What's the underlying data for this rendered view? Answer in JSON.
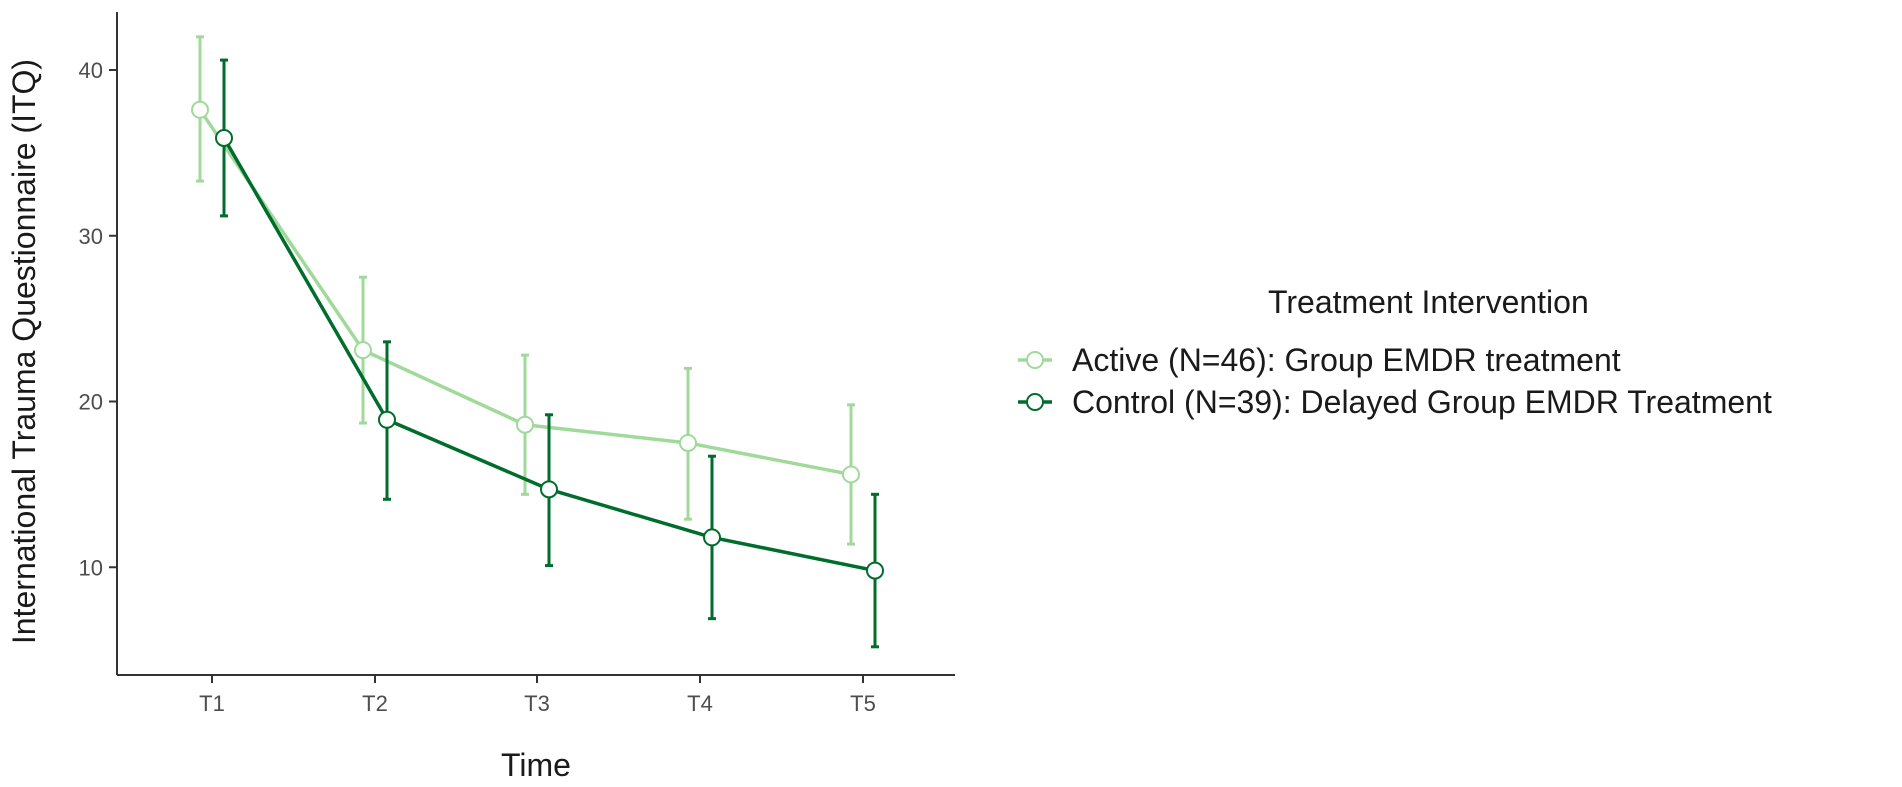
{
  "chart_data": {
    "type": "line",
    "categories": [
      "T1",
      "T2",
      "T3",
      "T4",
      "T5"
    ],
    "xlabel": "Time",
    "ylabel": "International Trauma Questionnaire (ITQ)",
    "ylim": [
      3.5,
      43.5
    ],
    "yticks": [
      10,
      20,
      30,
      40
    ],
    "grid": false,
    "legend": {
      "title": "Treatment Intervention",
      "position": "right"
    },
    "series": [
      {
        "name": "Active (N=46): Group EMDR treatment",
        "color": "#a1d99b",
        "values": [
          37.6,
          23.1,
          18.6,
          17.5,
          15.6
        ],
        "error_low": [
          33.3,
          18.7,
          14.4,
          12.9,
          11.4
        ],
        "error_high": [
          42.0,
          27.5,
          22.8,
          22.0,
          19.8
        ]
      },
      {
        "name": "Control (N=39): Delayed Group EMDR Treatment",
        "color": "#006d2c",
        "values": [
          35.9,
          18.9,
          14.7,
          11.8,
          9.8
        ],
        "error_low": [
          31.2,
          14.1,
          10.1,
          6.9,
          5.2
        ],
        "error_high": [
          40.6,
          23.6,
          19.2,
          16.7,
          14.4
        ]
      }
    ]
  }
}
